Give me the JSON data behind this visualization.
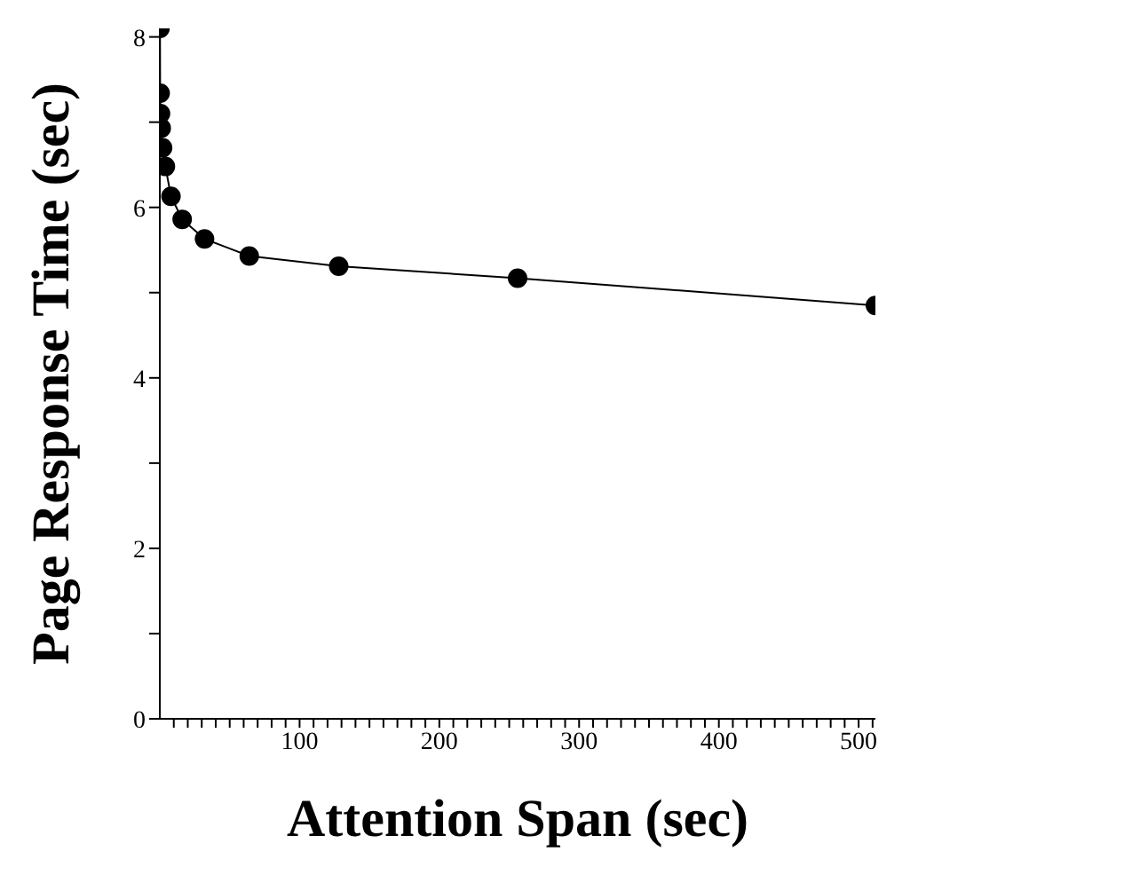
{
  "chart_data": {
    "type": "line",
    "xlabel": "Attention Span (sec)",
    "ylabel": "Page Response Time (sec)",
    "x": [
      0.125,
      0.25,
      0.5,
      1,
      2,
      4,
      8,
      16,
      32,
      64,
      128,
      256,
      512
    ],
    "series": [
      {
        "color": "#000000",
        "values": [
          8.1,
          7.34,
          7.1,
          6.93,
          6.7,
          6.48,
          6.13,
          5.86,
          5.63,
          5.43,
          5.31,
          5.17,
          4.85
        ]
      }
    ],
    "xlim": [
      0,
      512
    ],
    "xticks": [
      {
        "value": 10,
        "label": null
      },
      {
        "value": 20,
        "label": null
      },
      {
        "value": 30,
        "label": null
      },
      {
        "value": 40,
        "label": null
      },
      {
        "value": 50,
        "label": null
      },
      {
        "value": 60,
        "label": null
      },
      {
        "value": 70,
        "label": null
      },
      {
        "value": 80,
        "label": null
      },
      {
        "value": 90,
        "label": null
      },
      100,
      {
        "value": 110,
        "label": null
      },
      {
        "value": 120,
        "label": null
      },
      {
        "value": 130,
        "label": null
      },
      {
        "value": 140,
        "label": null
      },
      {
        "value": 150,
        "label": null
      },
      {
        "value": 160,
        "label": null
      },
      {
        "value": 170,
        "label": null
      },
      {
        "value": 180,
        "label": null
      },
      {
        "value": 190,
        "label": null
      },
      200,
      {
        "value": 210,
        "label": null
      },
      {
        "value": 220,
        "label": null
      },
      {
        "value": 230,
        "label": null
      },
      {
        "value": 240,
        "label": null
      },
      {
        "value": 250,
        "label": null
      },
      {
        "value": 260,
        "label": null
      },
      {
        "value": 270,
        "label": null
      },
      {
        "value": 280,
        "label": null
      },
      {
        "value": 290,
        "label": null
      },
      300,
      {
        "value": 310,
        "label": null
      },
      {
        "value": 320,
        "label": null
      },
      {
        "value": 330,
        "label": null
      },
      {
        "value": 340,
        "label": null
      },
      {
        "value": 350,
        "label": null
      },
      {
        "value": 360,
        "label": null
      },
      {
        "value": 370,
        "label": null
      },
      {
        "value": 380,
        "label": null
      },
      {
        "value": 390,
        "label": null
      },
      400,
      {
        "value": 410,
        "label": null
      },
      {
        "value": 420,
        "label": null
      },
      {
        "value": 430,
        "label": null
      },
      {
        "value": 440,
        "label": null
      },
      {
        "value": 450,
        "label": null
      },
      {
        "value": 460,
        "label": null
      },
      {
        "value": 470,
        "label": null
      },
      {
        "value": 480,
        "label": null
      },
      {
        "value": 490,
        "label": null
      },
      500,
      {
        "value": 510,
        "label": null
      }
    ],
    "ylim": [
      0,
      8.1
    ],
    "yticks": [
      0,
      {
        "value": 1,
        "label": null
      },
      2,
      {
        "value": 3,
        "label": null
      },
      4,
      {
        "value": 5,
        "label": null
      },
      6,
      {
        "value": 7,
        "label": null
      },
      8
    ],
    "grid": false,
    "legend": false,
    "marker": "circle",
    "line_style": "solid"
  }
}
